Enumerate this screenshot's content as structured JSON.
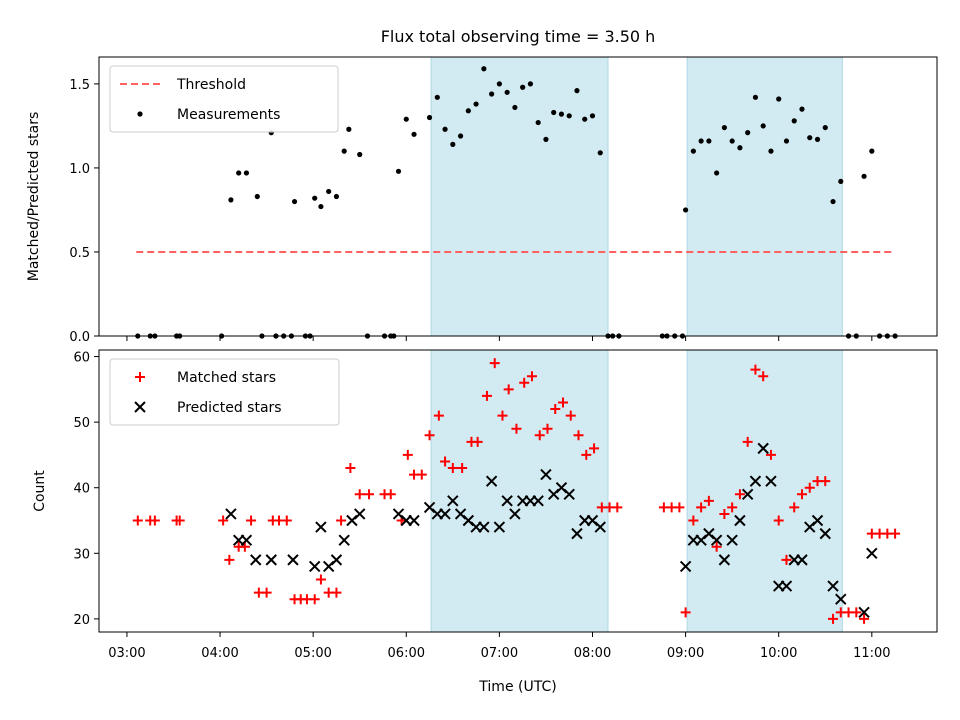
{
  "title": "Flux total observing time = 3.50 h",
  "colors": {
    "shade": "#add8e6",
    "threshold": "#ff6060",
    "matched": "#ff0000",
    "predicted": "#000000",
    "measure": "#000000"
  },
  "chart_data": [
    {
      "type": "scatter",
      "ylabel": "Matched/Predicted stars",
      "xlim": [
        "02:42",
        "11:42"
      ],
      "ylim": [
        0,
        1.66
      ],
      "yticks": [
        0.0,
        0.5,
        1.0,
        1.5
      ],
      "ytick_labels": [
        "0.0",
        "0.5",
        "1.0",
        "1.5"
      ],
      "shaded_intervals": [
        [
          "06:16",
          "08:10"
        ],
        [
          "09:01",
          "10:41"
        ]
      ],
      "threshold": {
        "name": "Threshold",
        "value": 0.5,
        "x_start": "03:06",
        "x_end": "11:13",
        "style": "dashed"
      },
      "legend_placement": "upper-left",
      "series": [
        {
          "name": "Measurements",
          "marker": "dot",
          "points": [
            [
              "03:07",
              0
            ],
            [
              "03:15",
              0
            ],
            [
              "03:18",
              0
            ],
            [
              "03:32",
              0
            ],
            [
              "03:34",
              0
            ],
            [
              "04:01",
              0
            ],
            [
              "04:07",
              0.81
            ],
            [
              "04:12",
              0.97
            ],
            [
              "04:17",
              0.97
            ],
            [
              "04:24",
              0.83
            ],
            [
              "04:27",
              0
            ],
            [
              "04:33",
              1.21
            ],
            [
              "04:36",
              0
            ],
            [
              "04:41",
              0
            ],
            [
              "04:46",
              0
            ],
            [
              "04:48",
              0.8
            ],
            [
              "04:55",
              0
            ],
            [
              "04:58",
              0
            ],
            [
              "05:01",
              0.82
            ],
            [
              "05:05",
              0.77
            ],
            [
              "05:10",
              0.86
            ],
            [
              "05:15",
              0.83
            ],
            [
              "05:20",
              1.1
            ],
            [
              "05:23",
              1.23
            ],
            [
              "05:30",
              1.08
            ],
            [
              "05:35",
              0
            ],
            [
              "05:46",
              0
            ],
            [
              "05:50",
              0
            ],
            [
              "05:52",
              0
            ],
            [
              "05:55",
              0.98
            ],
            [
              "06:00",
              1.29
            ],
            [
              "06:05",
              1.2
            ],
            [
              "06:15",
              1.3
            ],
            [
              "06:20",
              1.42
            ],
            [
              "06:25",
              1.23
            ],
            [
              "06:30",
              1.14
            ],
            [
              "06:35",
              1.19
            ],
            [
              "06:40",
              1.34
            ],
            [
              "06:45",
              1.38
            ],
            [
              "06:50",
              1.59
            ],
            [
              "06:55",
              1.44
            ],
            [
              "07:00",
              1.5
            ],
            [
              "07:05",
              1.45
            ],
            [
              "07:10",
              1.36
            ],
            [
              "07:15",
              1.48
            ],
            [
              "07:20",
              1.5
            ],
            [
              "07:25",
              1.27
            ],
            [
              "07:30",
              1.17
            ],
            [
              "07:35",
              1.33
            ],
            [
              "07:40",
              1.32
            ],
            [
              "07:45",
              1.31
            ],
            [
              "07:50",
              1.46
            ],
            [
              "07:55",
              1.29
            ],
            [
              "08:00",
              1.31
            ],
            [
              "08:05",
              1.09
            ],
            [
              "08:10",
              0
            ],
            [
              "08:13",
              0
            ],
            [
              "08:17",
              0
            ],
            [
              "08:45",
              0
            ],
            [
              "08:48",
              0
            ],
            [
              "08:53",
              0
            ],
            [
              "08:58",
              0
            ],
            [
              "09:00",
              0.75
            ],
            [
              "09:05",
              1.1
            ],
            [
              "09:10",
              1.16
            ],
            [
              "09:15",
              1.16
            ],
            [
              "09:20",
              0.97
            ],
            [
              "09:25",
              1.24
            ],
            [
              "09:30",
              1.16
            ],
            [
              "09:35",
              1.12
            ],
            [
              "09:40",
              1.21
            ],
            [
              "09:45",
              1.42
            ],
            [
              "09:50",
              1.25
            ],
            [
              "09:55",
              1.1
            ],
            [
              "10:00",
              1.41
            ],
            [
              "10:05",
              1.16
            ],
            [
              "10:10",
              1.28
            ],
            [
              "10:15",
              1.35
            ],
            [
              "10:20",
              1.18
            ],
            [
              "10:25",
              1.17
            ],
            [
              "10:30",
              1.24
            ],
            [
              "10:35",
              0.8
            ],
            [
              "10:40",
              0.92
            ],
            [
              "10:45",
              0
            ],
            [
              "10:50",
              0
            ],
            [
              "10:55",
              0.95
            ],
            [
              "11:00",
              1.1
            ],
            [
              "11:05",
              0
            ],
            [
              "11:10",
              0
            ],
            [
              "11:15",
              0
            ]
          ]
        }
      ]
    },
    {
      "type": "scatter",
      "ylabel": "Count",
      "xlabel": "Time (UTC)",
      "xlim": [
        "02:42",
        "11:42"
      ],
      "ylim": [
        18,
        61
      ],
      "yticks": [
        20,
        30,
        40,
        50,
        60
      ],
      "ytick_labels": [
        "20",
        "30",
        "40",
        "50",
        "60"
      ],
      "xticks": [
        "03:00",
        "04:00",
        "05:00",
        "06:00",
        "07:00",
        "08:00",
        "09:00",
        "10:00",
        "11:00"
      ],
      "shaded_intervals": [
        [
          "06:16",
          "08:10"
        ],
        [
          "09:01",
          "10:41"
        ]
      ],
      "legend_placement": "upper-left",
      "series": [
        {
          "name": "Matched stars",
          "marker": "plus",
          "points": [
            [
              "03:07",
              35
            ],
            [
              "03:15",
              35
            ],
            [
              "03:18",
              35
            ],
            [
              "03:32",
              35
            ],
            [
              "03:34",
              35
            ],
            [
              "04:02",
              35
            ],
            [
              "04:06",
              29
            ],
            [
              "04:12",
              31
            ],
            [
              "04:16",
              31
            ],
            [
              "04:20",
              35
            ],
            [
              "04:25",
              24
            ],
            [
              "04:30",
              24
            ],
            [
              "04:34",
              35
            ],
            [
              "04:38",
              35
            ],
            [
              "04:43",
              35
            ],
            [
              "04:48",
              23
            ],
            [
              "04:52",
              23
            ],
            [
              "04:56",
              23
            ],
            [
              "05:01",
              23
            ],
            [
              "05:05",
              26
            ],
            [
              "05:10",
              24
            ],
            [
              "05:15",
              24
            ],
            [
              "05:18",
              35
            ],
            [
              "05:24",
              43
            ],
            [
              "05:30",
              39
            ],
            [
              "05:36",
              39
            ],
            [
              "05:46",
              39
            ],
            [
              "05:50",
              39
            ],
            [
              "05:57",
              35
            ],
            [
              "06:01",
              45
            ],
            [
              "06:05",
              42
            ],
            [
              "06:10",
              42
            ],
            [
              "06:15",
              48
            ],
            [
              "06:21",
              51
            ],
            [
              "06:25",
              44
            ],
            [
              "06:30",
              43
            ],
            [
              "06:36",
              43
            ],
            [
              "06:42",
              47
            ],
            [
              "06:46",
              47
            ],
            [
              "06:52",
              54
            ],
            [
              "06:57",
              59
            ],
            [
              "07:02",
              51
            ],
            [
              "07:06",
              55
            ],
            [
              "07:11",
              49
            ],
            [
              "07:16",
              56
            ],
            [
              "07:21",
              57
            ],
            [
              "07:26",
              48
            ],
            [
              "07:31",
              49
            ],
            [
              "07:36",
              52
            ],
            [
              "07:41",
              53
            ],
            [
              "07:46",
              51
            ],
            [
              "07:51",
              48
            ],
            [
              "07:56",
              45
            ],
            [
              "08:01",
              46
            ],
            [
              "08:06",
              37
            ],
            [
              "08:11",
              37
            ],
            [
              "08:16",
              37
            ],
            [
              "08:46",
              37
            ],
            [
              "08:51",
              37
            ],
            [
              "08:56",
              37
            ],
            [
              "09:00",
              21
            ],
            [
              "09:05",
              35
            ],
            [
              "09:10",
              37
            ],
            [
              "09:15",
              38
            ],
            [
              "09:20",
              31
            ],
            [
              "09:25",
              36
            ],
            [
              "09:30",
              37
            ],
            [
              "09:35",
              39
            ],
            [
              "09:40",
              47
            ],
            [
              "09:45",
              58
            ],
            [
              "09:50",
              57
            ],
            [
              "09:55",
              45
            ],
            [
              "10:00",
              35
            ],
            [
              "10:05",
              29
            ],
            [
              "10:10",
              37
            ],
            [
              "10:15",
              39
            ],
            [
              "10:20",
              40
            ],
            [
              "10:25",
              41
            ],
            [
              "10:30",
              41
            ],
            [
              "10:35",
              20
            ],
            [
              "10:40",
              21
            ],
            [
              "10:45",
              21
            ],
            [
              "10:50",
              21
            ],
            [
              "10:55",
              20
            ],
            [
              "11:00",
              33
            ],
            [
              "11:05",
              33
            ],
            [
              "11:10",
              33
            ],
            [
              "11:15",
              33
            ]
          ]
        },
        {
          "name": "Predicted stars",
          "marker": "x",
          "points": [
            [
              "04:07",
              36
            ],
            [
              "04:12",
              32
            ],
            [
              "04:17",
              32
            ],
            [
              "04:23",
              29
            ],
            [
              "04:33",
              29
            ],
            [
              "04:47",
              29
            ],
            [
              "05:01",
              28
            ],
            [
              "05:05",
              34
            ],
            [
              "05:10",
              28
            ],
            [
              "05:15",
              29
            ],
            [
              "05:20",
              32
            ],
            [
              "05:25",
              35
            ],
            [
              "05:30",
              36
            ],
            [
              "05:55",
              36
            ],
            [
              "06:00",
              35
            ],
            [
              "06:05",
              35
            ],
            [
              "06:15",
              37
            ],
            [
              "06:20",
              36
            ],
            [
              "06:25",
              36
            ],
            [
              "06:30",
              38
            ],
            [
              "06:35",
              36
            ],
            [
              "06:40",
              35
            ],
            [
              "06:45",
              34
            ],
            [
              "06:50",
              34
            ],
            [
              "06:55",
              41
            ],
            [
              "07:00",
              34
            ],
            [
              "07:05",
              38
            ],
            [
              "07:10",
              36
            ],
            [
              "07:15",
              38
            ],
            [
              "07:20",
              38
            ],
            [
              "07:25",
              38
            ],
            [
              "07:30",
              42
            ],
            [
              "07:35",
              39
            ],
            [
              "07:40",
              40
            ],
            [
              "07:45",
              39
            ],
            [
              "07:50",
              33
            ],
            [
              "07:55",
              35
            ],
            [
              "08:00",
              35
            ],
            [
              "08:05",
              34
            ],
            [
              "09:00",
              28
            ],
            [
              "09:05",
              32
            ],
            [
              "09:10",
              32
            ],
            [
              "09:15",
              33
            ],
            [
              "09:20",
              32
            ],
            [
              "09:25",
              29
            ],
            [
              "09:30",
              32
            ],
            [
              "09:35",
              35
            ],
            [
              "09:40",
              39
            ],
            [
              "09:45",
              41
            ],
            [
              "09:50",
              46
            ],
            [
              "09:55",
              41
            ],
            [
              "10:00",
              25
            ],
            [
              "10:05",
              25
            ],
            [
              "10:10",
              29
            ],
            [
              "10:15",
              29
            ],
            [
              "10:20",
              34
            ],
            [
              "10:25",
              35
            ],
            [
              "10:30",
              33
            ],
            [
              "10:35",
              25
            ],
            [
              "10:40",
              23
            ],
            [
              "10:55",
              21
            ],
            [
              "11:00",
              30
            ]
          ]
        }
      ]
    }
  ]
}
